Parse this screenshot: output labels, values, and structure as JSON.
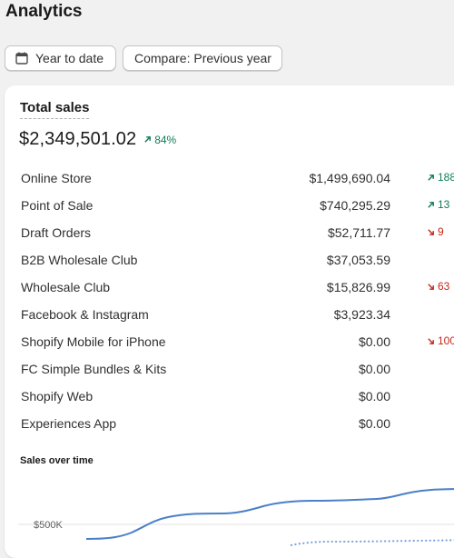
{
  "page": {
    "title": "Analytics"
  },
  "filters": {
    "date_label": "Year to date",
    "compare_label": "Compare: Previous year"
  },
  "card": {
    "title": "Total sales",
    "total_value": "$2,349,501.02",
    "total_change": "84%",
    "rows": [
      {
        "name": "Online Store",
        "value": "$1,499,690.04",
        "change": "188",
        "direction": "up"
      },
      {
        "name": "Point of Sale",
        "value": "$740,295.29",
        "change": "13",
        "direction": "up"
      },
      {
        "name": "Draft Orders",
        "value": "$52,711.77",
        "change": "9",
        "direction": "down"
      },
      {
        "name": "B2B Wholesale Club",
        "value": "$37,053.59",
        "change": "",
        "direction": ""
      },
      {
        "name": "Wholesale Club",
        "value": "$15,826.99",
        "change": "63",
        "direction": "down"
      },
      {
        "name": "Facebook & Instagram",
        "value": "$3,923.34",
        "change": "",
        "direction": ""
      },
      {
        "name": "Shopify Mobile for iPhone",
        "value": "$0.00",
        "change": "100",
        "direction": "down"
      },
      {
        "name": "FC Simple Bundles & Kits",
        "value": "$0.00",
        "change": "",
        "direction": ""
      },
      {
        "name": "Shopify Web",
        "value": "$0.00",
        "change": "",
        "direction": ""
      },
      {
        "name": "Experiences App",
        "value": "$0.00",
        "change": "",
        "direction": ""
      }
    ]
  },
  "chart": {
    "title": "Sales over time",
    "y_tick_label": "$500K"
  },
  "colors": {
    "positive": "#107c5a",
    "negative": "#c4291c",
    "current_line": "#4a80c8",
    "previous_line": "#6f9ad6"
  },
  "icons": {
    "date_button": "calendar-icon",
    "change_up": "arrow-up-right-icon",
    "change_down": "arrow-down-right-icon"
  }
}
